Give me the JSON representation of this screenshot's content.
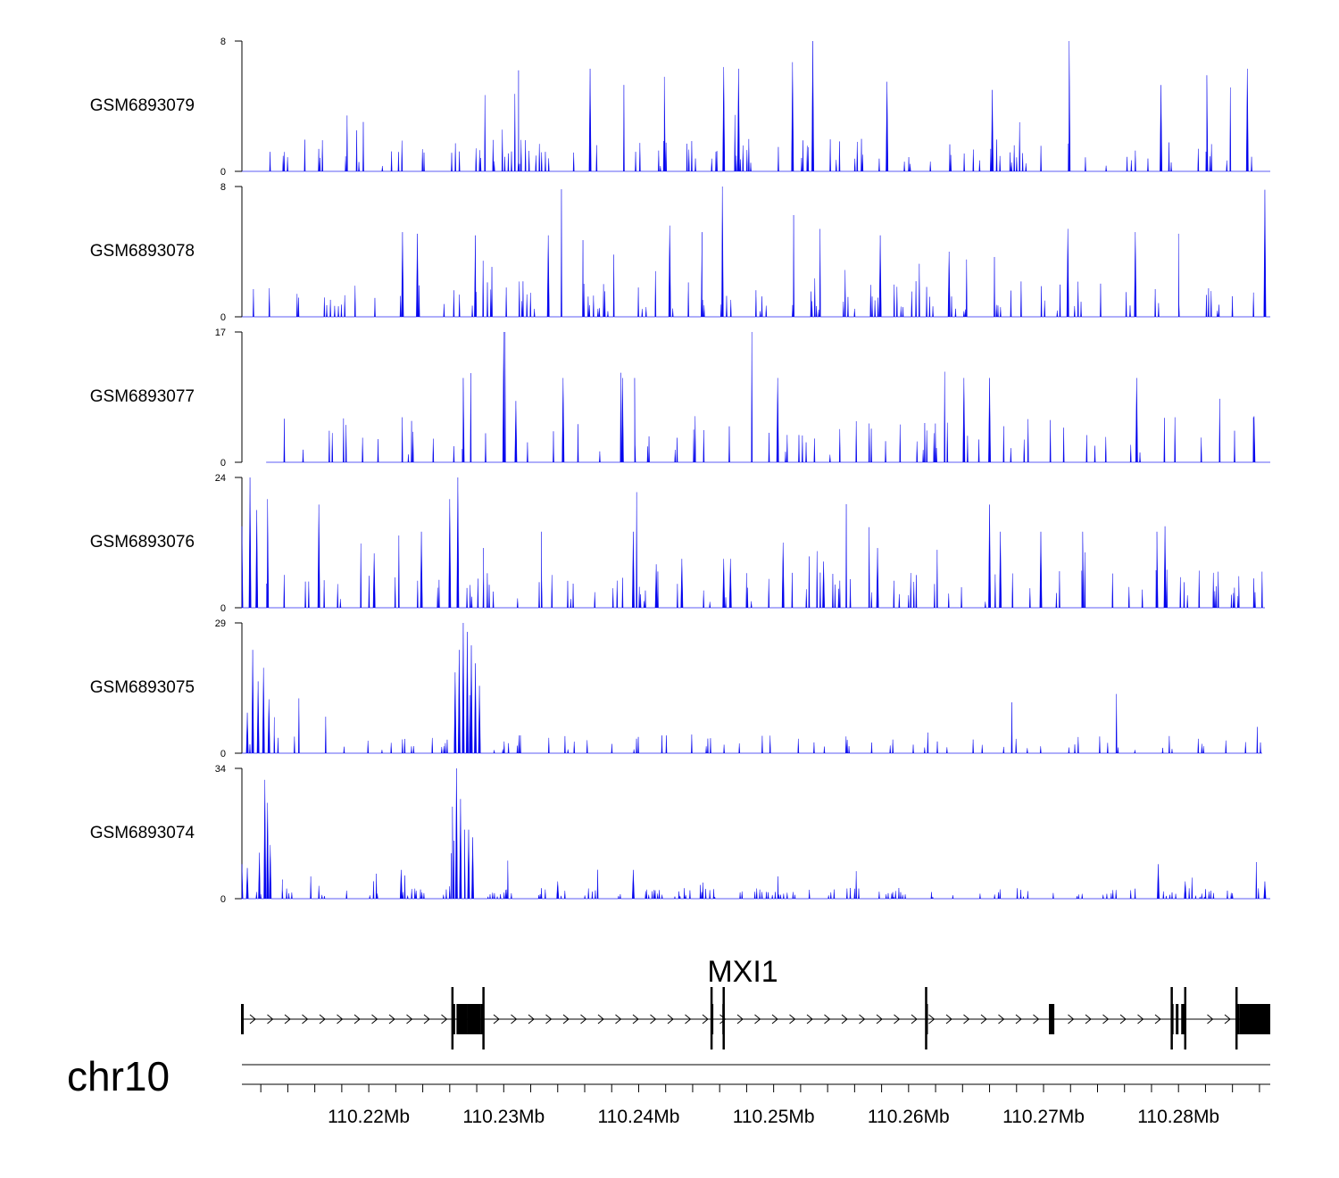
{
  "chart_data": {
    "type": "area",
    "title": "",
    "chromosome": "chr10",
    "region": {
      "start_mb": 110.2106,
      "end_mb": 110.2868
    },
    "ticks": {
      "minor_step_mb": 0.002,
      "labels": [
        "110.22Mb",
        "110.23Mb",
        "110.24Mb",
        "110.25Mb",
        "110.26Mb",
        "110.27Mb",
        "110.28Mb"
      ],
      "label_positions_mb": [
        110.22,
        110.23,
        110.24,
        110.25,
        110.26,
        110.27,
        110.28
      ]
    },
    "series": [
      {
        "name": "GSM6893079",
        "ylim": [
          0,
          8
        ],
        "ymax_label": "8",
        "ymin_label": "0",
        "color": "#0000ee",
        "baseline": 1.0,
        "density": 0.55,
        "peaks_mb": [
          110.2311,
          110.2364,
          110.2419,
          110.2463,
          110.2474,
          110.2514,
          110.2529,
          110.2584,
          110.2662,
          110.2719,
          110.2787,
          110.2821,
          110.2851
        ],
        "peak_heights": [
          6.2,
          6.3,
          5.8,
          6.4,
          6.3,
          6.7,
          8.0,
          5.5,
          5.0,
          8.0,
          5.3,
          5.9,
          6.3
        ]
      },
      {
        "name": "GSM6893078",
        "ylim": [
          0,
          8
        ],
        "ymax_label": "8",
        "ymin_label": "0",
        "color": "#0000ee",
        "baseline": 1.1,
        "density": 0.55,
        "peaks_mb": [
          110.2225,
          110.2236,
          110.2279,
          110.2333,
          110.2423,
          110.2447,
          110.2462,
          110.2579,
          110.263,
          110.2718,
          110.2768,
          110.28,
          110.2864
        ],
        "peak_heights": [
          5.2,
          5.1,
          5.0,
          5.0,
          5.6,
          5.2,
          8.0,
          5.0,
          4.0,
          5.4,
          5.2,
          5.1,
          7.8
        ]
      },
      {
        "name": "GSM6893077",
        "ylim": [
          0,
          17
        ],
        "ymax_label": "17",
        "ymin_label": "0",
        "color": "#0000ee",
        "baseline": 3.0,
        "density": 0.18,
        "start_mb": 110.2124,
        "peaks_mb": [
          110.227,
          110.23,
          110.2309,
          110.2344,
          110.2388,
          110.2397,
          110.2503,
          110.2641,
          110.266,
          110.2769,
          110.2856
        ],
        "peak_heights": [
          11.0,
          17.0,
          8.0,
          11.0,
          11.0,
          11.0,
          11.0,
          11.0,
          11.0,
          11.0,
          6.0
        ]
      },
      {
        "name": "GSM6893076",
        "ylim": [
          0,
          24
        ],
        "ymax_label": "24",
        "ymin_label": "0",
        "color": "#0000ee",
        "baseline": 3.5,
        "density": 0.4,
        "end_mb": 110.2864,
        "peaks_mb": [
          110.2106,
          110.2112,
          110.2117,
          110.2125,
          110.2163,
          110.2204,
          110.2239,
          110.226,
          110.2266,
          110.2285,
          110.2328,
          110.2396,
          110.2413,
          110.2432,
          110.2463,
          110.2468,
          110.2507,
          110.2537,
          110.2577,
          110.266,
          110.2668,
          110.2698,
          110.2729,
          110.2784,
          110.279
        ],
        "peak_heights": [
          15.0,
          24.0,
          18.0,
          20.0,
          19.0,
          10.0,
          14.0,
          20.0,
          24.0,
          11.0,
          14.0,
          14.0,
          8.0,
          9.0,
          9.0,
          9.0,
          12.0,
          8.5,
          11.0,
          19.0,
          14.0,
          14.0,
          14.0,
          14.0,
          15.0
        ]
      },
      {
        "name": "GSM6893075",
        "ylim": [
          0,
          29
        ],
        "ymax_label": "29",
        "ymin_label": "0",
        "color": "#0000ee",
        "baseline": 2.2,
        "density": 0.35,
        "end_mb": 110.2862,
        "peaks_mb": [
          110.211,
          110.2114,
          110.2118,
          110.2122,
          110.2126,
          110.213,
          110.2264,
          110.2267,
          110.227,
          110.2273,
          110.2276,
          110.2279,
          110.2282
        ],
        "peak_heights": [
          9.0,
          23.0,
          16.0,
          19.0,
          12.0,
          8.0,
          18.0,
          23.0,
          29.0,
          27.0,
          24.0,
          20.0,
          15.0
        ],
        "plateau_mb": [
          110.2262,
          110.2283
        ],
        "plateau_height": 10.0
      },
      {
        "name": "GSM6893074",
        "ylim": [
          0,
          34
        ],
        "ymax_label": "34",
        "ymin_label": "0",
        "color": "#0000ee",
        "baseline": 1.4,
        "density": 0.7,
        "peaks_mb": [
          110.2106,
          110.211,
          110.2119,
          110.2123,
          110.2125,
          110.2127,
          110.2136,
          110.2224,
          110.2262,
          110.2265,
          110.2268,
          110.2271,
          110.2274,
          110.2277,
          110.234,
          110.2396,
          110.2785,
          110.2805,
          110.2864
        ],
        "peak_heights": [
          9.0,
          8.0,
          12.0,
          31.0,
          25.0,
          14.0,
          5.0,
          7.5,
          24.0,
          34.0,
          26.0,
          18.0,
          18.0,
          16.0,
          4.5,
          7.5,
          9.0,
          4.5,
          4.5
        ],
        "plateau_mb": [
          110.2261,
          110.228
        ],
        "plateau_height": 13.0
      }
    ],
    "gene_track": {
      "gene_name": "MXI1",
      "strand": "+",
      "start_mb": 110.2106,
      "end_mb": 110.2868,
      "exons_mb": [
        [
          110.2106,
          110.2107
        ],
        [
          110.2262,
          110.2264
        ],
        [
          110.2265,
          110.2273
        ],
        [
          110.2273,
          110.2283
        ],
        [
          110.2283,
          110.2285
        ],
        [
          110.2454,
          110.2455
        ],
        [
          110.2462,
          110.2463
        ],
        [
          110.2613,
          110.2614
        ],
        [
          110.2704,
          110.2708
        ],
        [
          110.2795,
          110.2796
        ],
        [
          110.2798,
          110.28
        ],
        [
          110.2802,
          110.2805
        ],
        [
          110.2843,
          110.2845
        ],
        [
          110.2845,
          110.2868
        ]
      ],
      "tall_exons_mb": [
        110.2262,
        110.2285,
        110.2454,
        110.2463,
        110.2613,
        110.2795,
        110.2805,
        110.2843
      ]
    }
  }
}
